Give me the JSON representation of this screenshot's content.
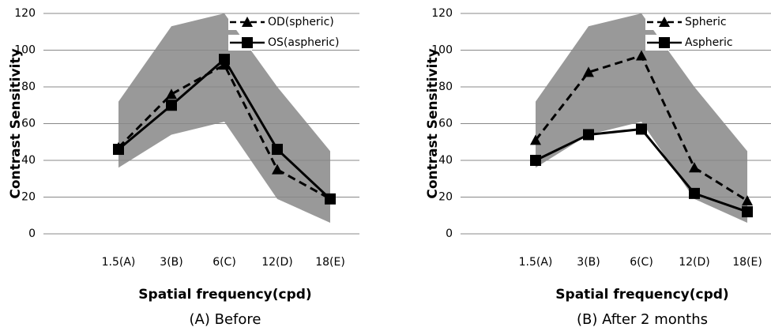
{
  "chart_data": [
    {
      "type": "line",
      "caption": "(A) Before",
      "x_label": "Spatial frequency(cpd)",
      "y_label": "Contrast Sensitivity",
      "categories": [
        "1.5(A)",
        "3(B)",
        "6(C)",
        "12(D)",
        "18(E)"
      ],
      "ylim": [
        0,
        120
      ],
      "yticks": [
        0,
        20,
        40,
        60,
        80,
        100,
        120
      ],
      "grid": true,
      "band": {
        "color": "#999999",
        "lower": [
          36,
          54,
          61,
          19,
          6
        ],
        "upper": [
          72,
          113,
          120,
          80,
          45
        ]
      },
      "series": [
        {
          "name": "OD(spheric)",
          "color": "#000000",
          "marker": "triangle",
          "dash": true,
          "values": [
            47,
            76,
            92,
            35,
            19
          ]
        },
        {
          "name": "OS(aspheric)",
          "color": "#000000",
          "marker": "square",
          "dash": false,
          "values": [
            46,
            70,
            95,
            46,
            19
          ]
        }
      ]
    },
    {
      "type": "line",
      "caption": "(B) After 2 months",
      "x_label": "Spatial frequency(cpd)",
      "y_label": "Contrast Sensitivity",
      "categories": [
        "1.5(A)",
        "3(B)",
        "6(C)",
        "12(D)",
        "18(E)"
      ],
      "ylim": [
        0,
        120
      ],
      "yticks": [
        0,
        20,
        40,
        60,
        80,
        100,
        120
      ],
      "grid": true,
      "band": {
        "color": "#999999",
        "lower": [
          36,
          54,
          61,
          19,
          6
        ],
        "upper": [
          72,
          113,
          120,
          80,
          45
        ]
      },
      "series": [
        {
          "name": "Spheric",
          "color": "#000000",
          "marker": "triangle",
          "dash": true,
          "values": [
            51,
            88,
            97,
            36,
            18
          ]
        },
        {
          "name": "Aspheric",
          "color": "#000000",
          "marker": "square",
          "dash": false,
          "values": [
            40,
            54,
            57,
            22,
            12
          ]
        }
      ]
    }
  ]
}
